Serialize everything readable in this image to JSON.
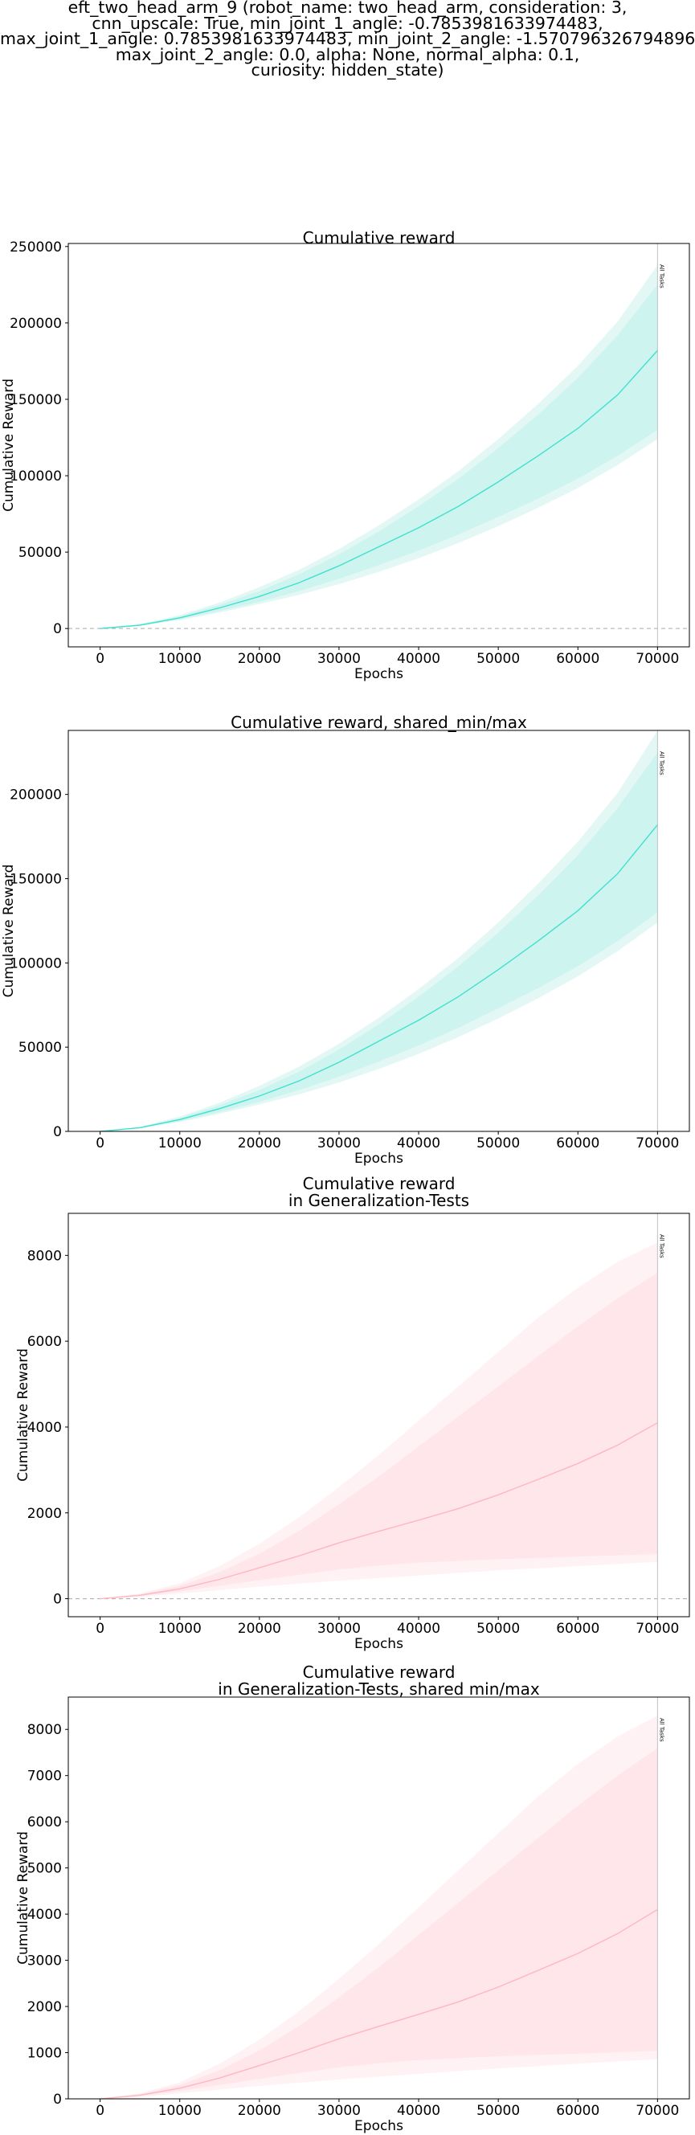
{
  "figure": {
    "suptitle_lines": [
      "eft_two_head_arm_9 (robot_name: two_head_arm, consideration: 3,",
      "cnn_upscale: True, min_joint_1_angle: -0.7853981633974483,",
      "max_joint_1_angle: 0.7853981633974483, min_joint_2_angle: -1.5707963267948966,",
      "max_joint_2_angle: 0.0, alpha: None, normal_alpha: 0.1,",
      "curiosity: hidden_state)"
    ]
  },
  "chart_data": [
    {
      "type": "line",
      "title_lines": [
        "Cumulative reward"
      ],
      "xlabel": "Epochs",
      "ylabel": "Cumulative Reward",
      "xlim": [
        -4000,
        74000
      ],
      "ylim": [
        -12000,
        252000
      ],
      "xticks": [
        0,
        10000,
        20000,
        30000,
        40000,
        50000,
        60000,
        70000
      ],
      "yticks": [
        0,
        50000,
        100000,
        150000,
        200000,
        250000
      ],
      "zero_line": true,
      "vline": {
        "x": 70000,
        "label": "All Tasks"
      },
      "colors": {
        "line": "#40e0d0",
        "band_outer": "#e3f8f5",
        "band_inner": "#cdf4ef"
      },
      "series": [
        {
          "x": [
            0,
            5000,
            10000,
            15000,
            20000,
            25000,
            30000,
            35000,
            40000,
            45000,
            50000,
            55000,
            60000,
            65000,
            70000
          ],
          "mean": [
            0,
            2200,
            7000,
            13500,
            21000,
            30000,
            41000,
            53500,
            66000,
            80000,
            96000,
            113000,
            131000,
            153000,
            182000
          ],
          "inner_low": [
            0,
            2000,
            6000,
            11500,
            17500,
            24500,
            32500,
            41500,
            51000,
            61500,
            73000,
            85000,
            98000,
            113000,
            130000
          ],
          "inner_high": [
            0,
            2500,
            8000,
            15500,
            24500,
            35500,
            48500,
            63500,
            80000,
            98000,
            118000,
            140000,
            164000,
            192000,
            225000
          ],
          "outer_low": [
            0,
            1800,
            5500,
            10500,
            16000,
            22000,
            29000,
            37000,
            46000,
            56000,
            67000,
            79000,
            92000,
            107000,
            124000
          ],
          "outer_high": [
            0,
            2700,
            8800,
            17000,
            27000,
            38500,
            52000,
            67500,
            84500,
            103000,
            124000,
            147000,
            172000,
            201000,
            238000
          ]
        }
      ]
    },
    {
      "type": "line",
      "title_lines": [
        "Cumulative reward, shared_min/max"
      ],
      "xlabel": "Epochs",
      "ylabel": "Cumulative Reward",
      "xlim": [
        -4000,
        74000
      ],
      "ylim": [
        0,
        238000
      ],
      "xticks": [
        0,
        10000,
        20000,
        30000,
        40000,
        50000,
        60000,
        70000
      ],
      "yticks": [
        0,
        50000,
        100000,
        150000,
        200000
      ],
      "zero_line": false,
      "vline": {
        "x": 70000,
        "label": "All Tasks"
      },
      "colors": {
        "line": "#40e0d0",
        "band_outer": "#e3f8f5",
        "band_inner": "#cdf4ef"
      },
      "series": [
        {
          "x": [
            0,
            5000,
            10000,
            15000,
            20000,
            25000,
            30000,
            35000,
            40000,
            45000,
            50000,
            55000,
            60000,
            65000,
            70000
          ],
          "mean": [
            0,
            2200,
            7000,
            13500,
            21000,
            30000,
            41000,
            53500,
            66000,
            80000,
            96000,
            113000,
            131000,
            153000,
            182000
          ],
          "inner_low": [
            0,
            2000,
            6000,
            11500,
            17500,
            24500,
            32500,
            41500,
            51000,
            61500,
            73000,
            85000,
            98000,
            113000,
            130000
          ],
          "inner_high": [
            0,
            2500,
            8000,
            15500,
            24500,
            35500,
            48500,
            63500,
            80000,
            98000,
            118000,
            140000,
            164000,
            192000,
            225000
          ],
          "outer_low": [
            0,
            1800,
            5500,
            10500,
            16000,
            22000,
            29000,
            37000,
            46000,
            56000,
            67000,
            79000,
            92000,
            107000,
            124000
          ],
          "outer_high": [
            0,
            2700,
            8800,
            17000,
            27000,
            38500,
            52000,
            67500,
            84500,
            103000,
            124000,
            147000,
            172000,
            201000,
            238000
          ]
        }
      ]
    },
    {
      "type": "line",
      "title_lines": [
        "Cumulative reward",
        "in Generalization-Tests"
      ],
      "xlabel": "Epochs",
      "ylabel": "Cumulative Reward",
      "xlim": [
        -4000,
        74000
      ],
      "ylim": [
        -420,
        8980
      ],
      "xticks": [
        0,
        10000,
        20000,
        30000,
        40000,
        50000,
        60000,
        70000
      ],
      "yticks": [
        0,
        2000,
        4000,
        6000,
        8000
      ],
      "zero_line": true,
      "vline": {
        "x": 70000,
        "label": "All Tasks"
      },
      "colors": {
        "line": "#ffb6c1",
        "band_outer": "#fff2f4",
        "band_inner": "#ffe6ea"
      },
      "series": [
        {
          "x": [
            0,
            5000,
            10000,
            15000,
            20000,
            25000,
            30000,
            35000,
            40000,
            45000,
            50000,
            55000,
            60000,
            65000,
            70000
          ],
          "mean": [
            0,
            80,
            230,
            450,
            720,
            1000,
            1300,
            1570,
            1830,
            2100,
            2420,
            2780,
            3150,
            3580,
            4100
          ],
          "inner_low": [
            0,
            60,
            170,
            300,
            430,
            560,
            680,
            770,
            840,
            880,
            920,
            950,
            980,
            1010,
            1040
          ],
          "inner_high": [
            0,
            100,
            300,
            620,
            1050,
            1580,
            2200,
            2850,
            3550,
            4250,
            4950,
            5650,
            6350,
            7000,
            7600
          ],
          "outer_low": [
            0,
            40,
            120,
            200,
            280,
            350,
            420,
            480,
            540,
            600,
            660,
            710,
            760,
            810,
            860
          ],
          "outer_high": [
            0,
            120,
            360,
            760,
            1280,
            1900,
            2600,
            3350,
            4150,
            4950,
            5750,
            6550,
            7250,
            7850,
            8300
          ]
        }
      ]
    },
    {
      "type": "line",
      "title_lines": [
        "Cumulative reward",
        "in Generalization-Tests, shared min/max"
      ],
      "xlabel": "Epochs",
      "ylabel": "Cumulative Reward",
      "xlim": [
        -4000,
        74000
      ],
      "ylim": [
        0,
        8700
      ],
      "xticks": [
        0,
        10000,
        20000,
        30000,
        40000,
        50000,
        60000,
        70000
      ],
      "yticks": [
        0,
        1000,
        2000,
        3000,
        4000,
        5000,
        6000,
        7000,
        8000
      ],
      "zero_line": false,
      "vline": {
        "x": 70000,
        "label": "All Tasks"
      },
      "colors": {
        "line": "#ffb6c1",
        "band_outer": "#fff2f4",
        "band_inner": "#ffe6ea"
      },
      "series": [
        {
          "x": [
            0,
            5000,
            10000,
            15000,
            20000,
            25000,
            30000,
            35000,
            40000,
            45000,
            50000,
            55000,
            60000,
            65000,
            70000
          ],
          "mean": [
            0,
            80,
            230,
            450,
            720,
            1000,
            1300,
            1570,
            1830,
            2100,
            2420,
            2780,
            3150,
            3580,
            4100
          ],
          "inner_low": [
            0,
            60,
            170,
            300,
            430,
            560,
            680,
            770,
            840,
            880,
            920,
            950,
            980,
            1010,
            1040
          ],
          "inner_high": [
            0,
            100,
            300,
            620,
            1050,
            1580,
            2200,
            2850,
            3550,
            4250,
            4950,
            5650,
            6350,
            7000,
            7600
          ],
          "outer_low": [
            0,
            40,
            120,
            200,
            280,
            350,
            420,
            480,
            540,
            600,
            660,
            710,
            760,
            810,
            860
          ],
          "outer_high": [
            0,
            120,
            360,
            760,
            1280,
            1900,
            2600,
            3350,
            4150,
            4950,
            5750,
            6550,
            7250,
            7850,
            8300
          ]
        }
      ]
    }
  ]
}
